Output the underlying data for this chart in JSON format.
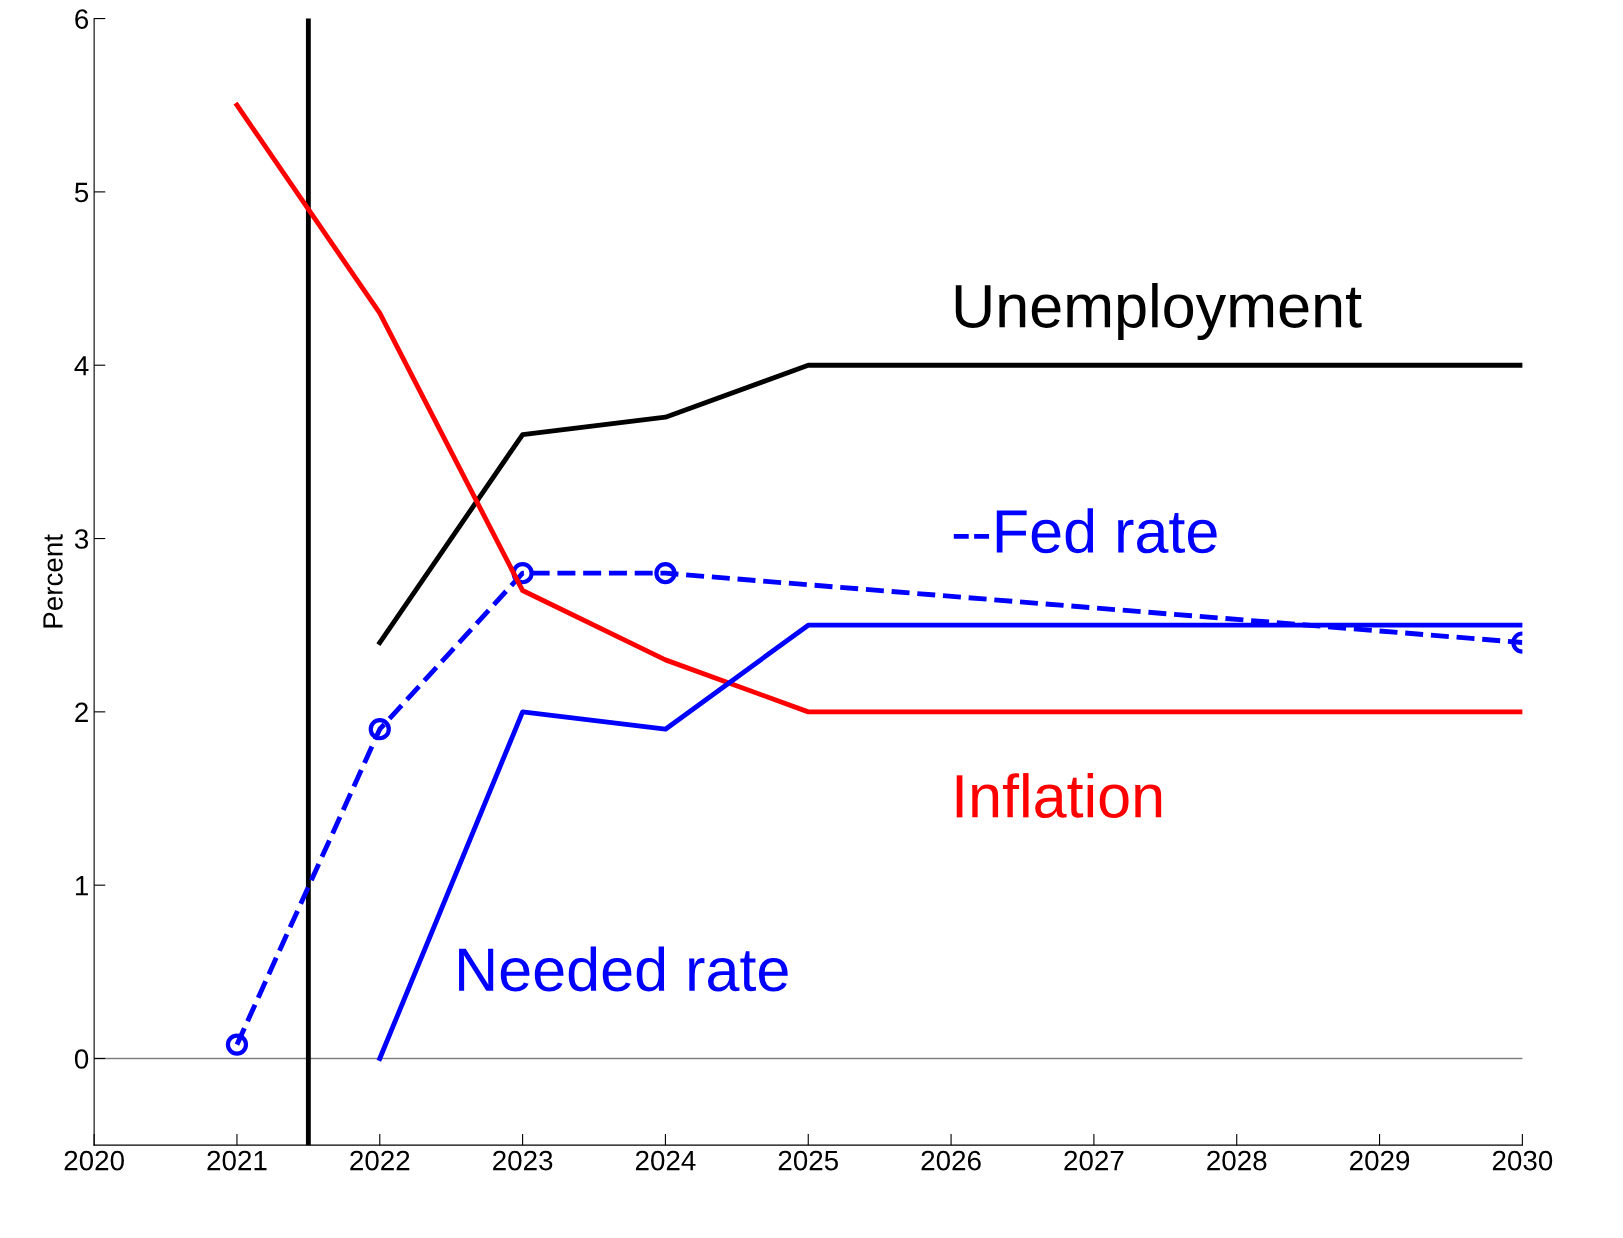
{
  "chart_data": {
    "type": "line",
    "ylabel": "Percent",
    "legend": false,
    "grid": false,
    "xlim": [
      2020,
      2030
    ],
    "xticks": [
      2020,
      2021,
      2022,
      2023,
      2024,
      2025,
      2026,
      2027,
      2028,
      2029,
      2030
    ],
    "ylim": [
      -0.5,
      6
    ],
    "yticks": [
      0,
      1,
      2,
      3,
      4,
      5,
      6
    ],
    "series": [
      {
        "name": "Unemployment",
        "color": "#000000",
        "x": [
          2022,
          2023,
          2024,
          2025,
          2030
        ],
        "values": [
          2.4,
          3.6,
          3.7,
          4.0,
          4.0
        ],
        "line_style": "solid",
        "marker": "none"
      },
      {
        "name": "--Fed rate",
        "color": "#0000ff",
        "x": [
          2021,
          2022,
          2023,
          2024,
          2030
        ],
        "values": [
          0.08,
          1.9,
          2.8,
          2.8,
          2.4
        ],
        "line_style": "dashed",
        "marker": "circle"
      },
      {
        "name": "Inflation",
        "color": "#ff0000",
        "x": [
          2021,
          2022,
          2023,
          2024,
          2025,
          2030
        ],
        "values": [
          5.5,
          4.3,
          2.7,
          2.3,
          2.0,
          2.0
        ],
        "line_style": "solid",
        "marker": "none"
      },
      {
        "name": "Needed rate",
        "color": "#0000ff",
        "x": [
          2022,
          2023,
          2024,
          2025,
          2030
        ],
        "values": [
          0,
          2.0,
          1.9,
          2.5,
          2.5
        ],
        "line_style": "solid",
        "marker": "none"
      }
    ],
    "ref_lines": [
      {
        "axis": "y",
        "value": 0,
        "color": "#808080"
      },
      {
        "axis": "x",
        "value": 2021.5,
        "color": "#000000"
      }
    ]
  }
}
